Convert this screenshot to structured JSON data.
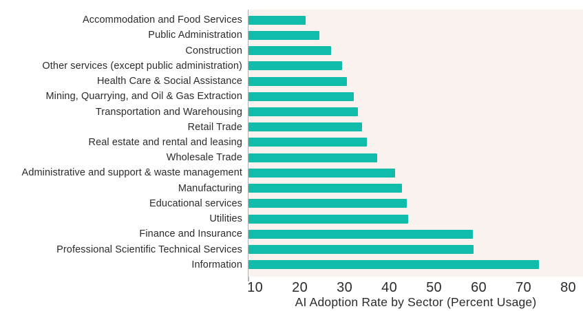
{
  "chart_data": {
    "type": "bar",
    "orientation": "horizontal",
    "xlabel": "AI Adoption Rate by Sector (Percent Usage)",
    "categories": [
      "Accommodation and Food Services",
      "Public Administration",
      "Construction",
      "Other services (except public administration)",
      "Health Care & Social Assistance",
      "Mining, Quarrying, and Oil & Gas Extraction",
      "Transportation and Warehousing",
      "Retail Trade",
      "Real estate and rental and leasing",
      "Wholesale Trade",
      "Administrative and support & waste management",
      "Manufacturing",
      "Educational services",
      "Utilities",
      "Finance and Insurance",
      "Professional Scientific Technical Services",
      "Information"
    ],
    "values": [
      21.3,
      24.5,
      27.0,
      29.5,
      30.6,
      32.1,
      33.0,
      34.0,
      35.0,
      37.4,
      41.4,
      42.8,
      44.0,
      44.3,
      58.7,
      58.8,
      73.5
    ],
    "x_ticks": [
      10,
      20,
      30,
      40,
      50,
      60,
      70,
      80
    ],
    "xlim": [
      8.6,
      83.3
    ],
    "grid": false,
    "legend": false,
    "colors": {
      "bar": "#12bcab",
      "plot_background": "#faf2ef",
      "axis_line": "#b4b4b4",
      "text": "#2b2b2b"
    }
  }
}
